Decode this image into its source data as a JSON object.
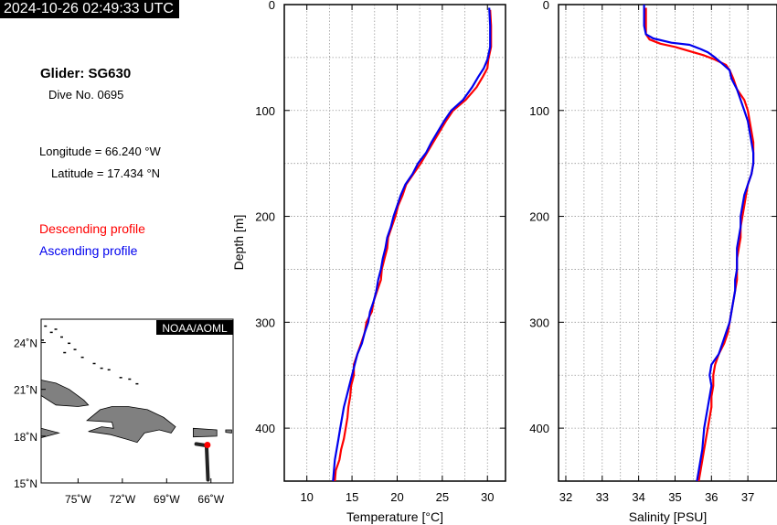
{
  "header": {
    "timestamp": "2024-10-26 02:49:33 UTC"
  },
  "info": {
    "glider": "Glider: SG630",
    "dive": "Dive No. 0695",
    "longitude": "Longitude = 66.240 °W",
    "latitude": "Latitude = 17.434 °N"
  },
  "legend": {
    "descending": "Descending profile",
    "ascending": "Ascending profile"
  },
  "colors": {
    "descending": "#ff0000",
    "ascending": "#0000ee",
    "land": "#808080",
    "track": "#222222"
  },
  "map": {
    "credit": "NOAA/AOML",
    "lat_labels": [
      "24˚N",
      "21˚N",
      "18˚N",
      "15˚N"
    ],
    "lat_values": [
      24,
      21,
      18,
      15
    ],
    "lon_labels": [
      "75˚W",
      "72˚W",
      "69˚W",
      "66˚W"
    ],
    "lon_values": [
      -75,
      -72,
      -69,
      -66
    ],
    "lon_range": [
      -77.5,
      -64.5
    ],
    "lat_range": [
      15,
      25.5
    ],
    "glider_position": {
      "lon": -66.24,
      "lat": 17.434
    }
  },
  "chart_data": [
    {
      "type": "line",
      "xlabel": "Temperature [°C]",
      "ylabel": "Depth [m]",
      "xlim": [
        7.5,
        32
      ],
      "ylim": [
        450,
        0
      ],
      "xticks": [
        10,
        15,
        20,
        25,
        30
      ],
      "yticks": [
        0,
        100,
        200,
        300,
        400
      ],
      "grid": true,
      "series": [
        {
          "name": "Descending profile",
          "color": "#ff0000",
          "points": [
            [
              30.3,
              5
            ],
            [
              30.4,
              20
            ],
            [
              30.4,
              40
            ],
            [
              30.1,
              52
            ],
            [
              30.0,
              60
            ],
            [
              29.5,
              68
            ],
            [
              28.8,
              78
            ],
            [
              27.6,
              90
            ],
            [
              26.2,
              100
            ],
            [
              25.4,
              110
            ],
            [
              24.7,
              120
            ],
            [
              24.0,
              130
            ],
            [
              23.3,
              140
            ],
            [
              22.6,
              150
            ],
            [
              21.8,
              160
            ],
            [
              21.0,
              170
            ],
            [
              20.6,
              180
            ],
            [
              20.1,
              190
            ],
            [
              19.8,
              200
            ],
            [
              19.4,
              210
            ],
            [
              19.0,
              220
            ],
            [
              18.9,
              230
            ],
            [
              18.6,
              240
            ],
            [
              18.3,
              250
            ],
            [
              18.2,
              260
            ],
            [
              17.8,
              270
            ],
            [
              17.4,
              280
            ],
            [
              17.2,
              290
            ],
            [
              16.6,
              300
            ],
            [
              16.4,
              310
            ],
            [
              16.0,
              320
            ],
            [
              15.6,
              330
            ],
            [
              15.2,
              340
            ],
            [
              15.2,
              350
            ],
            [
              14.9,
              360
            ],
            [
              14.8,
              370
            ],
            [
              14.6,
              380
            ],
            [
              14.5,
              390
            ],
            [
              14.3,
              400
            ],
            [
              14.1,
              410
            ],
            [
              13.8,
              420
            ],
            [
              13.6,
              430
            ],
            [
              13.2,
              440
            ],
            [
              13.1,
              450
            ]
          ]
        },
        {
          "name": "Ascending profile",
          "color": "#0000ee",
          "points": [
            [
              30.2,
              3
            ],
            [
              30.3,
              20
            ],
            [
              30.3,
              40
            ],
            [
              30.0,
              52
            ],
            [
              29.6,
              60
            ],
            [
              29.0,
              68
            ],
            [
              28.3,
              78
            ],
            [
              27.3,
              90
            ],
            [
              26.0,
              100
            ],
            [
              25.2,
              110
            ],
            [
              24.5,
              120
            ],
            [
              23.8,
              130
            ],
            [
              23.2,
              140
            ],
            [
              22.3,
              150
            ],
            [
              21.7,
              160
            ],
            [
              20.9,
              170
            ],
            [
              20.4,
              180
            ],
            [
              20.0,
              190
            ],
            [
              19.6,
              200
            ],
            [
              19.3,
              210
            ],
            [
              18.9,
              220
            ],
            [
              18.7,
              230
            ],
            [
              18.4,
              240
            ],
            [
              18.2,
              250
            ],
            [
              17.9,
              260
            ],
            [
              17.7,
              270
            ],
            [
              17.4,
              280
            ],
            [
              17.0,
              290
            ],
            [
              16.8,
              300
            ],
            [
              16.4,
              310
            ],
            [
              16.1,
              320
            ],
            [
              15.6,
              330
            ],
            [
              15.3,
              340
            ],
            [
              15.0,
              350
            ],
            [
              14.7,
              360
            ],
            [
              14.4,
              370
            ],
            [
              14.1,
              380
            ],
            [
              13.9,
              390
            ],
            [
              13.7,
              400
            ],
            [
              13.5,
              410
            ],
            [
              13.3,
              420
            ],
            [
              13.1,
              430
            ],
            [
              13.0,
              440
            ],
            [
              12.9,
              450
            ]
          ]
        }
      ]
    },
    {
      "type": "line",
      "xlabel": "Salinity [PSU]",
      "ylabel": "",
      "xlim": [
        31.8,
        37.8
      ],
      "ylim": [
        450,
        0
      ],
      "xticks": [
        32,
        33,
        34,
        35,
        36,
        37
      ],
      "yticks": [
        0,
        100,
        200,
        300,
        400
      ],
      "grid": true,
      "series": [
        {
          "name": "Descending profile",
          "color": "#ff0000",
          "points": [
            [
              34.2,
              3
            ],
            [
              34.2,
              28
            ],
            [
              34.3,
              33
            ],
            [
              34.6,
              37
            ],
            [
              35.0,
              40
            ],
            [
              35.4,
              44
            ],
            [
              35.8,
              48
            ],
            [
              36.1,
              52
            ],
            [
              36.4,
              57
            ],
            [
              36.5,
              62
            ],
            [
              36.6,
              70
            ],
            [
              36.7,
              80
            ],
            [
              36.9,
              90
            ],
            [
              37.0,
              100
            ],
            [
              37.05,
              110
            ],
            [
              37.1,
              120
            ],
            [
              37.15,
              130
            ],
            [
              37.15,
              140
            ],
            [
              37.15,
              150
            ],
            [
              37.1,
              160
            ],
            [
              37.0,
              170
            ],
            [
              36.95,
              180
            ],
            [
              36.9,
              190
            ],
            [
              36.85,
              200
            ],
            [
              36.8,
              210
            ],
            [
              36.8,
              220
            ],
            [
              36.75,
              230
            ],
            [
              36.7,
              240
            ],
            [
              36.7,
              250
            ],
            [
              36.7,
              260
            ],
            [
              36.65,
              270
            ],
            [
              36.6,
              280
            ],
            [
              36.55,
              290
            ],
            [
              36.5,
              300
            ],
            [
              36.45,
              310
            ],
            [
              36.35,
              320
            ],
            [
              36.2,
              330
            ],
            [
              36.1,
              340
            ],
            [
              36.05,
              350
            ],
            [
              36.05,
              360
            ],
            [
              36.0,
              370
            ],
            [
              36.0,
              380
            ],
            [
              35.95,
              390
            ],
            [
              35.9,
              400
            ],
            [
              35.8,
              420
            ],
            [
              35.7,
              440
            ],
            [
              35.65,
              450
            ]
          ]
        },
        {
          "name": "Ascending profile",
          "color": "#0000ee",
          "points": [
            [
              34.15,
              0
            ],
            [
              34.15,
              20
            ],
            [
              34.2,
              28
            ],
            [
              34.4,
              32
            ],
            [
              34.9,
              36
            ],
            [
              35.4,
              38
            ],
            [
              35.7,
              42
            ],
            [
              35.9,
              45
            ],
            [
              36.1,
              50
            ],
            [
              36.3,
              56
            ],
            [
              36.5,
              62
            ],
            [
              36.55,
              70
            ],
            [
              36.7,
              80
            ],
            [
              36.8,
              90
            ],
            [
              36.9,
              100
            ],
            [
              37.0,
              110
            ],
            [
              37.05,
              120
            ],
            [
              37.1,
              130
            ],
            [
              37.15,
              140
            ],
            [
              37.15,
              150
            ],
            [
              37.1,
              160
            ],
            [
              37.0,
              170
            ],
            [
              36.9,
              180
            ],
            [
              36.85,
              190
            ],
            [
              36.8,
              200
            ],
            [
              36.8,
              210
            ],
            [
              36.75,
              220
            ],
            [
              36.7,
              230
            ],
            [
              36.7,
              240
            ],
            [
              36.7,
              250
            ],
            [
              36.65,
              260
            ],
            [
              36.65,
              270
            ],
            [
              36.6,
              280
            ],
            [
              36.55,
              290
            ],
            [
              36.5,
              300
            ],
            [
              36.4,
              310
            ],
            [
              36.3,
              320
            ],
            [
              36.2,
              330
            ],
            [
              36.0,
              340
            ],
            [
              35.95,
              350
            ],
            [
              36.0,
              360
            ],
            [
              35.95,
              370
            ],
            [
              35.9,
              380
            ],
            [
              35.85,
              390
            ],
            [
              35.8,
              400
            ],
            [
              35.75,
              420
            ],
            [
              35.65,
              440
            ],
            [
              35.6,
              450
            ]
          ]
        }
      ]
    }
  ]
}
